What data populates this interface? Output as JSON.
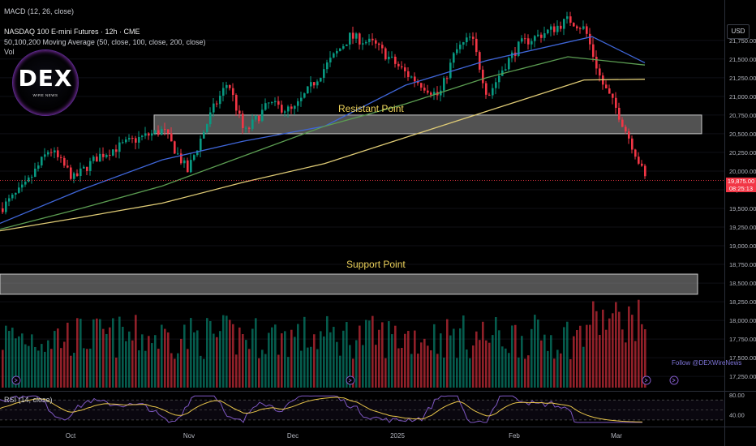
{
  "header": {
    "top_indicator": "MACD (12, 26, close)",
    "symbol_line": "NASDAQ 100 E-mini Futures · 12h · CME",
    "ma_line": "50,100,200 Moving Average (50, close, 100, close, 200, close)",
    "vol_label": "Vol",
    "rsi_label": "RSI (14, close)"
  },
  "logo": {
    "main": "DEX",
    "sub": "WIRE NEWS"
  },
  "currency_button": "USD",
  "watermark": "Follow @DEXWireNews",
  "colors": {
    "background": "#000000",
    "up": "#089981",
    "down": "#f23645",
    "ma50": "#3f66d8",
    "ma100": "#5c9e52",
    "ma200": "#e0cc76",
    "rsi": "#7e57c2",
    "rsi_ma": "#e8c54a",
    "annotation": "#ecd15a"
  },
  "chart_data": {
    "type": "candlestick",
    "instrument": "NASDAQ 100 E-mini Futures",
    "interval": "12h",
    "x_labels": [
      "Oct",
      "Nov",
      "Dec",
      "2025",
      "Feb",
      "Mar"
    ],
    "y_ticks": [
      17250,
      17500,
      17750,
      18000,
      18250,
      18500,
      18750,
      19000,
      19250,
      19500,
      19750,
      20000,
      20250,
      20500,
      20750,
      21000,
      21250,
      21500,
      21750
    ],
    "y_range": [
      17100,
      22030
    ],
    "y_tick_format": "comma-2dp",
    "last_price": {
      "value": "19,875.00",
      "countdown": "08:25:13",
      "numeric": 19875
    },
    "series": [
      {
        "name": "50",
        "points": [
          [
            0,
            19300
          ],
          [
            100,
            19750
          ],
          [
            200,
            20150
          ],
          [
            300,
            20400
          ],
          [
            400,
            20600
          ],
          [
            500,
            21150
          ],
          [
            600,
            21480
          ],
          [
            730,
            21800
          ],
          [
            795,
            21450
          ]
        ]
      },
      {
        "name": "100",
        "points": [
          [
            0,
            19220
          ],
          [
            100,
            19500
          ],
          [
            200,
            19800
          ],
          [
            300,
            20200
          ],
          [
            400,
            20600
          ],
          [
            500,
            20900
          ],
          [
            600,
            21250
          ],
          [
            700,
            21530
          ],
          [
            795,
            21420
          ]
        ]
      },
      {
        "name": "200",
        "points": [
          [
            0,
            19200
          ],
          [
            100,
            19380
          ],
          [
            200,
            19570
          ],
          [
            300,
            19850
          ],
          [
            400,
            20100
          ],
          [
            500,
            20450
          ],
          [
            600,
            20800
          ],
          [
            720,
            21220
          ],
          [
            795,
            21230
          ]
        ]
      }
    ],
    "price_path": [
      [
        0,
        19500
      ],
      [
        30,
        19800
      ],
      [
        60,
        20300
      ],
      [
        90,
        19900
      ],
      [
        120,
        20200
      ],
      [
        160,
        20400
      ],
      [
        200,
        20550
      ],
      [
        230,
        20000
      ],
      [
        260,
        20800
      ],
      [
        280,
        21200
      ],
      [
        300,
        20500
      ],
      [
        330,
        20900
      ],
      [
        360,
        20800
      ],
      [
        400,
        21400
      ],
      [
        430,
        21800
      ],
      [
        460,
        21700
      ],
      [
        480,
        21500
      ],
      [
        500,
        21300
      ],
      [
        540,
        21000
      ],
      [
        560,
        21600
      ],
      [
        580,
        21800
      ],
      [
        600,
        21000
      ],
      [
        620,
        21400
      ],
      [
        640,
        21700
      ],
      [
        680,
        21900
      ],
      [
        700,
        22030
      ],
      [
        720,
        21900
      ],
      [
        740,
        21200
      ],
      [
        760,
        20800
      ],
      [
        780,
        20300
      ],
      [
        795,
        19875
      ]
    ],
    "annotations": [
      {
        "label": "Resistant Point",
        "zone": [
          20500,
          20750
        ]
      },
      {
        "label": "Support Point",
        "zone": [
          18350,
          18620
        ]
      }
    ],
    "rsi": {
      "label": "RSI (14, close)",
      "ticks": [
        80,
        40
      ],
      "upper": 70,
      "lower": 30
    }
  }
}
